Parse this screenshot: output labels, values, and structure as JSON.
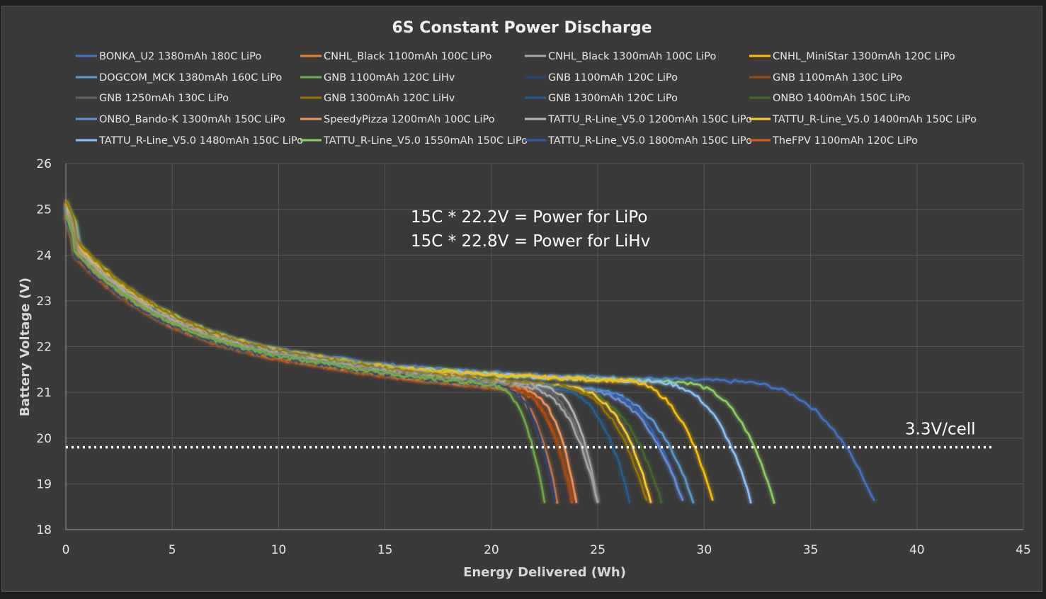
{
  "chart_data": {
    "type": "line",
    "title": "6S Constant Power Discharge",
    "xlabel": "Energy Delivered (Wh)",
    "ylabel": "Battery Voltage (V)",
    "xlim": [
      0,
      45
    ],
    "ylim": [
      18,
      26
    ],
    "xticks": [
      0,
      5,
      10,
      15,
      20,
      25,
      30,
      35,
      40,
      45
    ],
    "yticks": [
      18,
      19,
      20,
      21,
      22,
      23,
      24,
      25,
      26
    ],
    "grid": true,
    "legend_position": "top",
    "annotations": {
      "line1": "15C * 22.2V = Power for LiPo",
      "line2": "15C * 22.8V = Power for LiHv",
      "cutoff_label": "3.3V/cell",
      "cutoff_value": 19.8,
      "cutoff_x_range": [
        0,
        43.5
      ]
    },
    "series": [
      {
        "name": "BONKA_U2 1380mAh 180C LiPo",
        "color": "#4472c4",
        "start_v": 24.5,
        "knee_wh": 30.5,
        "end_wh": 38.0,
        "offset": 0.25
      },
      {
        "name": "CNHL_Black 1100mAh 100C LiPo",
        "color": "#ed7d31",
        "start_v": 24.3,
        "knee_wh": 20.0,
        "end_wh": 23.1,
        "offset": -0.2
      },
      {
        "name": "CNHL_Black 1300mAh 100C LiPo",
        "color": "#a5a5a5",
        "start_v": 24.4,
        "knee_wh": 21.0,
        "end_wh": 25.0,
        "offset": -0.05
      },
      {
        "name": "CNHL_MiniStar 1300mAh 120C LiPo",
        "color": "#ffc000",
        "start_v": 24.5,
        "knee_wh": 25.5,
        "end_wh": 30.4,
        "offset": 0.1
      },
      {
        "name": "DOGCOM_MCK 1380mAh 160C LiPo",
        "color": "#5b9bd5",
        "start_v": 24.4,
        "knee_wh": 24.0,
        "end_wh": 29.5,
        "offset": 0.05
      },
      {
        "name": "GNB 1100mAh 120C LiHv",
        "color": "#70ad47",
        "start_v": 24.3,
        "knee_wh": 19.5,
        "end_wh": 22.5,
        "offset": -0.1
      },
      {
        "name": "GNB 1100mAh 120C LiPo",
        "color": "#264478",
        "start_v": 24.2,
        "knee_wh": 20.0,
        "end_wh": 23.0,
        "offset": -0.15
      },
      {
        "name": "GNB 1100mAh 130C LiPo",
        "color": "#9e480e",
        "start_v": 24.2,
        "knee_wh": 20.5,
        "end_wh": 23.8,
        "offset": -0.2
      },
      {
        "name": "GNB 1250mAh 130C LiPo",
        "color": "#636363",
        "start_v": 24.3,
        "knee_wh": 21.5,
        "end_wh": 25.0,
        "offset": -0.05
      },
      {
        "name": "GNB 1300mAh 120C LiHv",
        "color": "#997300",
        "start_v": 24.6,
        "knee_wh": 22.5,
        "end_wh": 27.3,
        "offset": 0.1
      },
      {
        "name": "GNB 1300mAh 120C LiPo",
        "color": "#255e91",
        "start_v": 24.4,
        "knee_wh": 22.5,
        "end_wh": 26.5,
        "offset": 0.0
      },
      {
        "name": "ONBO 1400mAh 150C LiPo",
        "color": "#43682b",
        "start_v": 24.4,
        "knee_wh": 23.0,
        "end_wh": 28.0,
        "offset": 0.05
      },
      {
        "name": "ONBO_Bando-K 1300mAh 150C LiPo",
        "color": "#698ed0",
        "start_v": 24.4,
        "knee_wh": 23.5,
        "end_wh": 29.0,
        "offset": 0.05
      },
      {
        "name": "SpeedyPizza 1200mAh 100C LiPo",
        "color": "#f1975a",
        "start_v": 24.2,
        "knee_wh": 21.0,
        "end_wh": 24.0,
        "offset": -0.2
      },
      {
        "name": "TATTU_R-Line_V5.0 1200mAh 150C LiPo",
        "color": "#b7b7b7",
        "start_v": 24.4,
        "knee_wh": 22.0,
        "end_wh": 25.0,
        "offset": 0.0
      },
      {
        "name": "TATTU_R-Line_V5.0 1400mAh 150C LiPo",
        "color": "#ffcd33",
        "start_v": 24.5,
        "knee_wh": 23.0,
        "end_wh": 27.5,
        "offset": 0.1
      },
      {
        "name": "TATTU_R-Line_V5.0 1480mAh 150C LiPo",
        "color": "#8cc2ff",
        "start_v": 24.5,
        "knee_wh": 27.0,
        "end_wh": 32.2,
        "offset": 0.1
      },
      {
        "name": "TATTU_R-Line_V5.0 1550mAh 150C LiPo",
        "color": "#8ed060",
        "start_v": 24.6,
        "knee_wh": 28.0,
        "end_wh": 33.3,
        "offset": 0.15
      },
      {
        "name": "TATTU_R-Line_V5.0 1800mAh 150C LiPo",
        "color": "#2e5aac",
        "start_v": 24.4,
        "knee_wh": 24.0,
        "end_wh": 29.0,
        "offset": 0.05
      },
      {
        "name": "TheFPV 1100mAh 120C LiPo",
        "color": "#e05a1a",
        "start_v": 24.2,
        "knee_wh": 20.5,
        "end_wh": 23.8,
        "offset": -0.25
      }
    ]
  }
}
